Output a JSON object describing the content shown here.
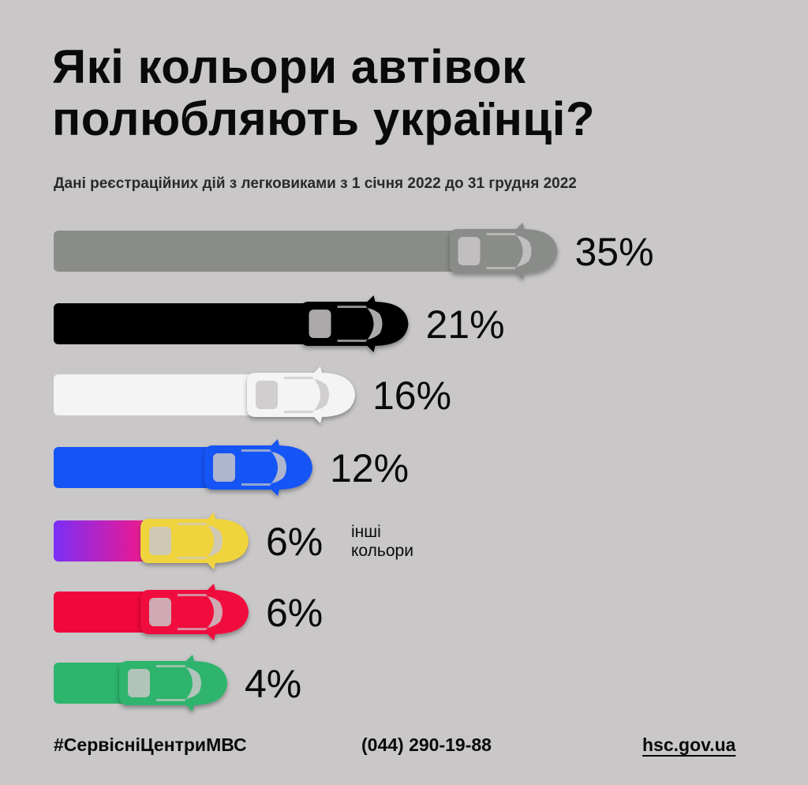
{
  "title_lines": [
    "Які кольори автівок",
    "полюбляють українці?"
  ],
  "subtitle": "Дані реєстраційних дій з легковиками з 1 січня 2022  до 31 грудня 2022",
  "chart_data": {
    "type": "bar",
    "orientation": "horizontal",
    "unit": "%",
    "categories": [
      "grey",
      "black",
      "white",
      "blue",
      "other",
      "red",
      "green"
    ],
    "values": [
      35,
      21,
      16,
      12,
      6,
      6,
      4
    ],
    "labels": [
      "35%",
      "21%",
      "16%",
      "12%",
      "6%",
      "6%",
      "4%"
    ],
    "colors": [
      "#8a8c89",
      "#000000",
      "#f4f4f4",
      "#1554f5",
      "gradient",
      "#f0073c",
      "#2db46d"
    ],
    "car_colors": [
      "#8a8c89",
      "#000000",
      "#f4f4f4",
      "#1554f5",
      "#f0d43e",
      "#f0073c",
      "#2db46d"
    ],
    "gradient_colors": [
      "#7b2ff7",
      "#e21a9a",
      "#ff8a4a"
    ],
    "annotation": {
      "index": 4,
      "lines": [
        "інші",
        "кольори"
      ]
    },
    "bar_icon": "car-top-view-icon"
  },
  "footer": {
    "hashtag": "#СервісніЦентриМВС",
    "phone": "(044) 290-19-88",
    "website": "hsc.gov.ua"
  }
}
